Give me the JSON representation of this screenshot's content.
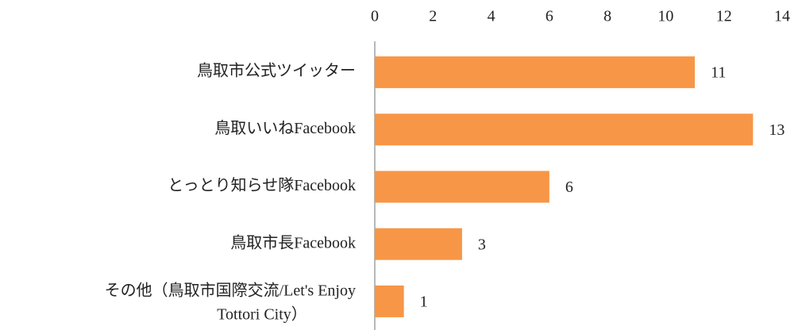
{
  "chart_data": {
    "type": "bar",
    "orientation": "horizontal",
    "categories": [
      "鳥取市公式ツイッター",
      "鳥取いいねFacebook",
      "とっとり知らせ隊Facebook",
      "鳥取市長Facebook",
      [
        "その他（鳥取市国際交流/Let's Enjoy",
        "Tottori City）"
      ]
    ],
    "values": [
      11,
      13,
      6,
      3,
      1
    ],
    "color": "#f79646",
    "xlim": [
      0,
      14
    ],
    "xticks": [
      0,
      2,
      4,
      6,
      8,
      10,
      12,
      14
    ],
    "x_axis_position": "top",
    "grid": false
  }
}
